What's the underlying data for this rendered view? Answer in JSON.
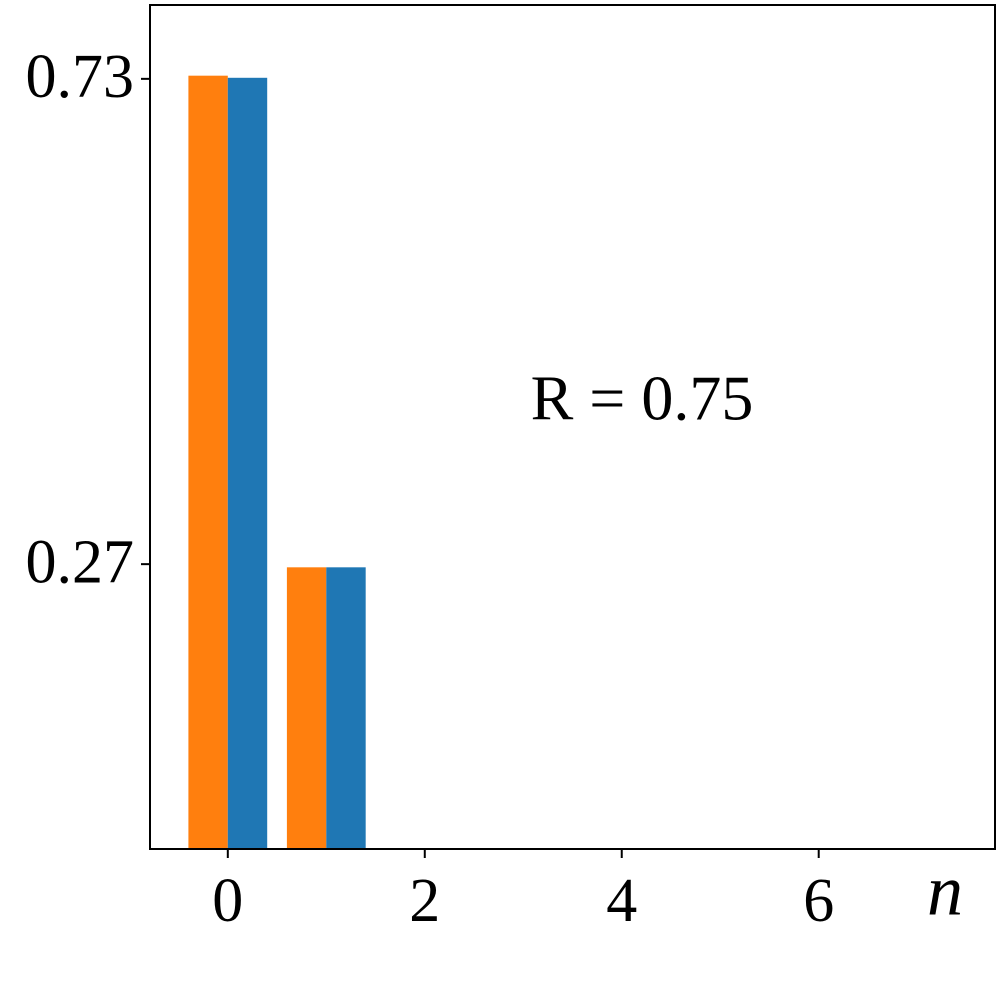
{
  "chart_data": {
    "type": "bar",
    "x": [
      0,
      1,
      2,
      3,
      4,
      5,
      6,
      7
    ],
    "series": [
      {
        "color": "#ff7f0e",
        "values": [
          0.733,
          0.267,
          0,
          0,
          0,
          0,
          0,
          0
        ]
      },
      {
        "color": "#1f77b4",
        "values": [
          0.731,
          0.267,
          0,
          0,
          0,
          0,
          0,
          0
        ]
      }
    ],
    "xlim": [
      -0.79,
      7.79
    ],
    "xticks": [
      0,
      2,
      4,
      6
    ],
    "ylim": [
      0,
      0.8
    ],
    "yticks": [
      0.27,
      0.73
    ],
    "x_label": "n",
    "annotation": "R = 0.75",
    "grid": false
  }
}
